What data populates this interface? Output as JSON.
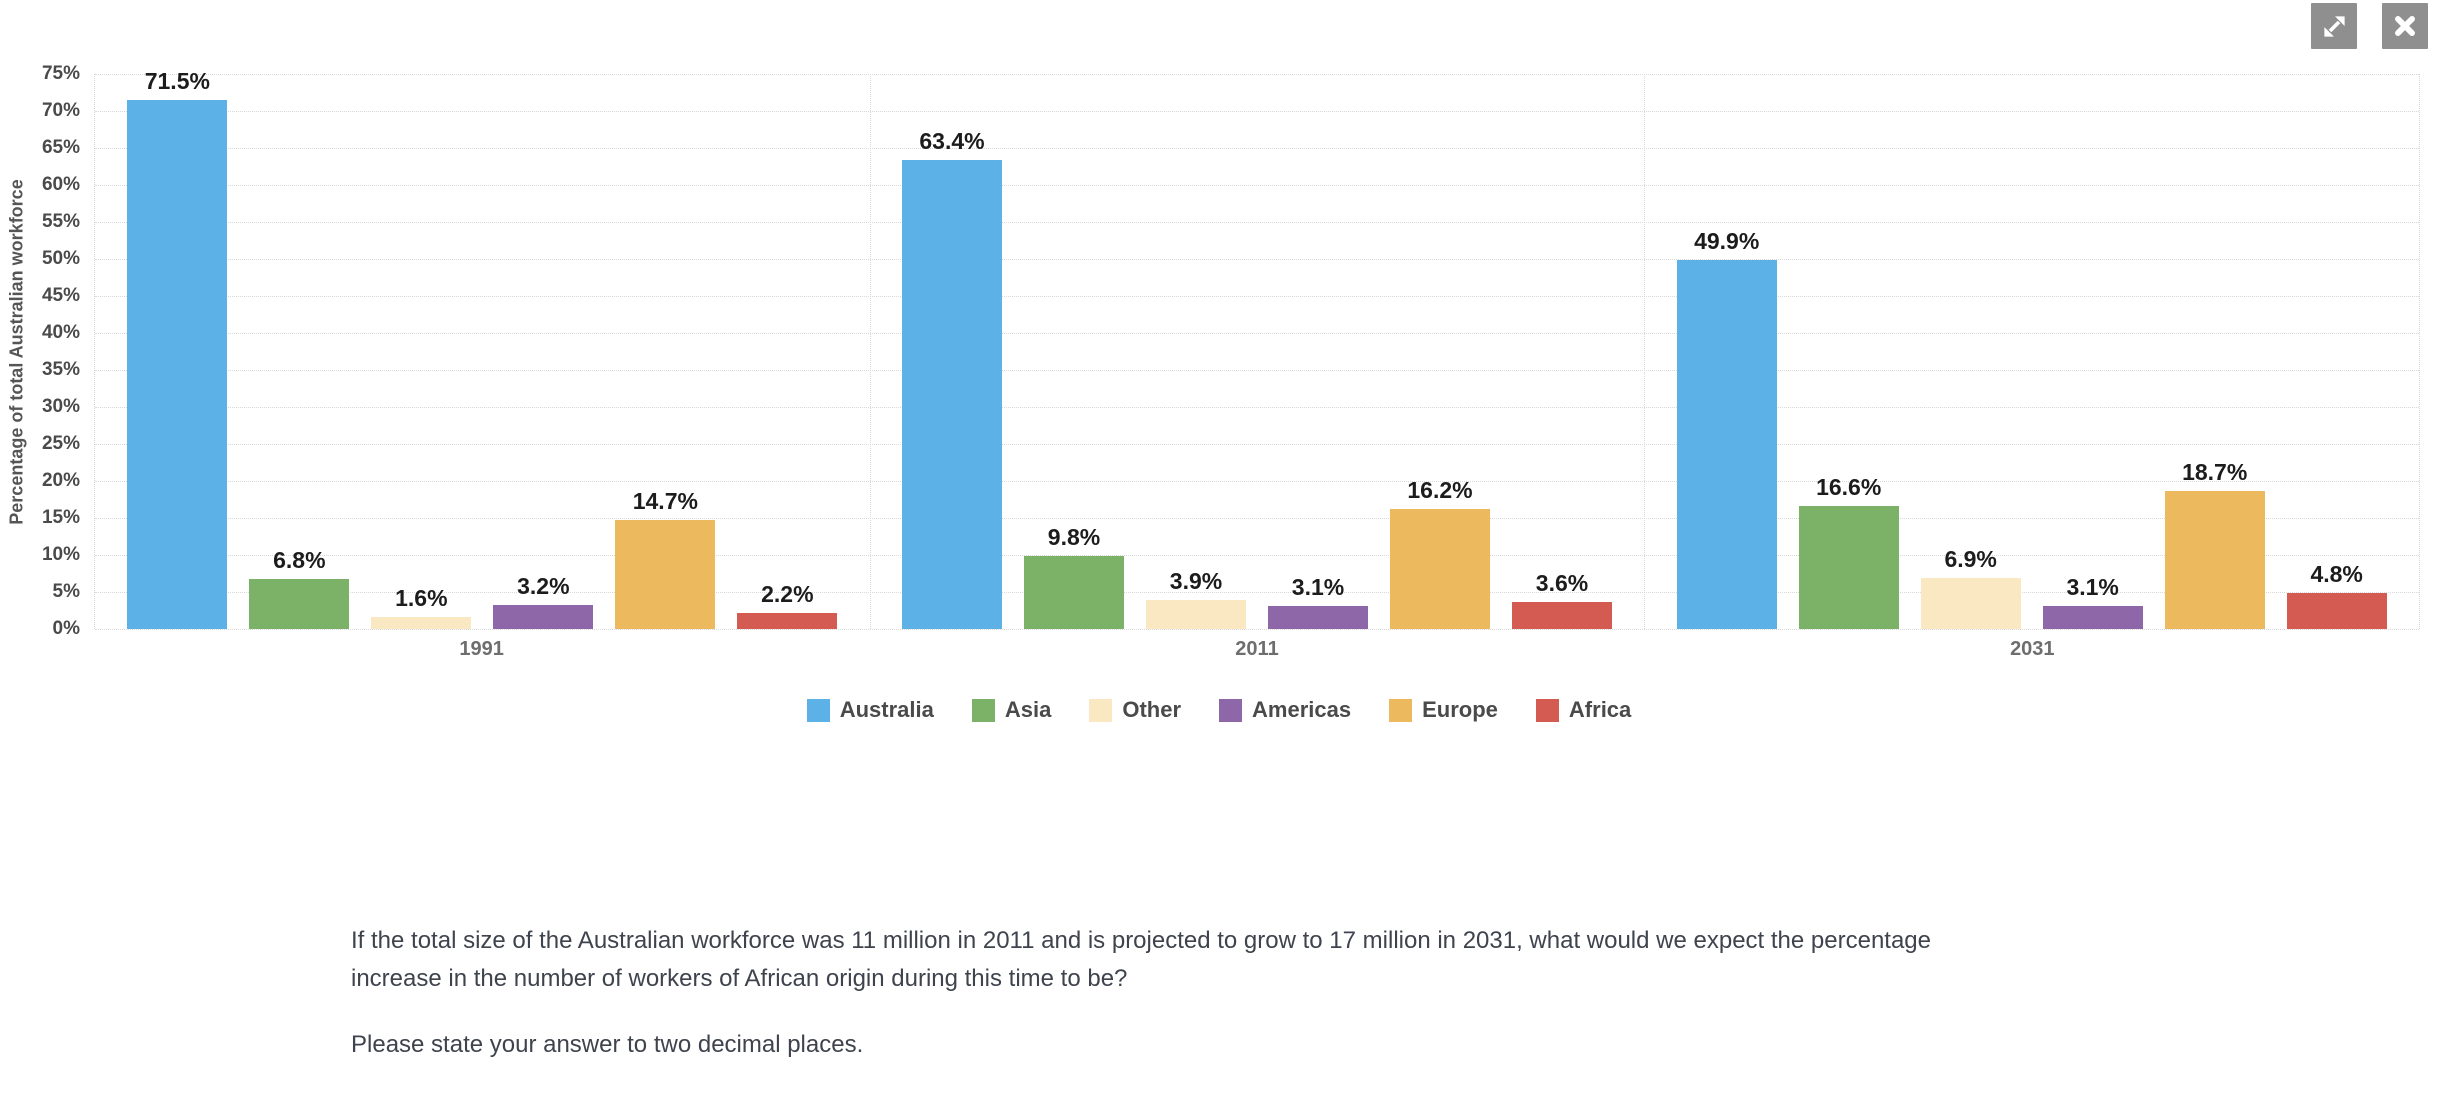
{
  "toolbar": {
    "background_color": "#8F8F8F",
    "icon_color": "#FFFFFF",
    "buttons": [
      {
        "icon": "expand-icon"
      },
      {
        "icon": "close-icon"
      }
    ]
  },
  "chart_data": {
    "type": "bar",
    "title": "",
    "ylabel": "Percentage of total Australian workforce",
    "xlabel": "",
    "categories": [
      "1991",
      "2011",
      "2031"
    ],
    "series": [
      {
        "name": "Australia",
        "color": "#5CB2E6",
        "values": [
          71.5,
          63.4,
          49.9
        ]
      },
      {
        "name": "Asia",
        "color": "#7CB267",
        "values": [
          6.8,
          9.8,
          16.6
        ]
      },
      {
        "name": "Other",
        "color": "#F9E8C2",
        "values": [
          1.6,
          3.9,
          6.9
        ]
      },
      {
        "name": "Americas",
        "color": "#8D67A8",
        "values": [
          3.2,
          3.1,
          3.1
        ]
      },
      {
        "name": "Europe",
        "color": "#EDB95F",
        "values": [
          14.7,
          16.2,
          18.7
        ]
      },
      {
        "name": "Africa",
        "color": "#D35B52",
        "values": [
          2.2,
          3.6,
          4.8
        ]
      }
    ],
    "ylim": [
      0,
      75
    ],
    "ytick_step": 5,
    "ytick_suffix": "%",
    "value_suffix": "%",
    "value_decimals": 1,
    "data_labels": true,
    "grid": "dotted",
    "group_dividers": true,
    "legend_position": "bottom"
  },
  "question": {
    "paragraph1": "If the total size of the Australian workforce was 11 million in 2011 and is projected to grow to 17 million in 2031, what would we expect the percentage increase in the number of workers of African origin during this time to be?",
    "paragraph2": "Please state your answer to two decimal places."
  }
}
